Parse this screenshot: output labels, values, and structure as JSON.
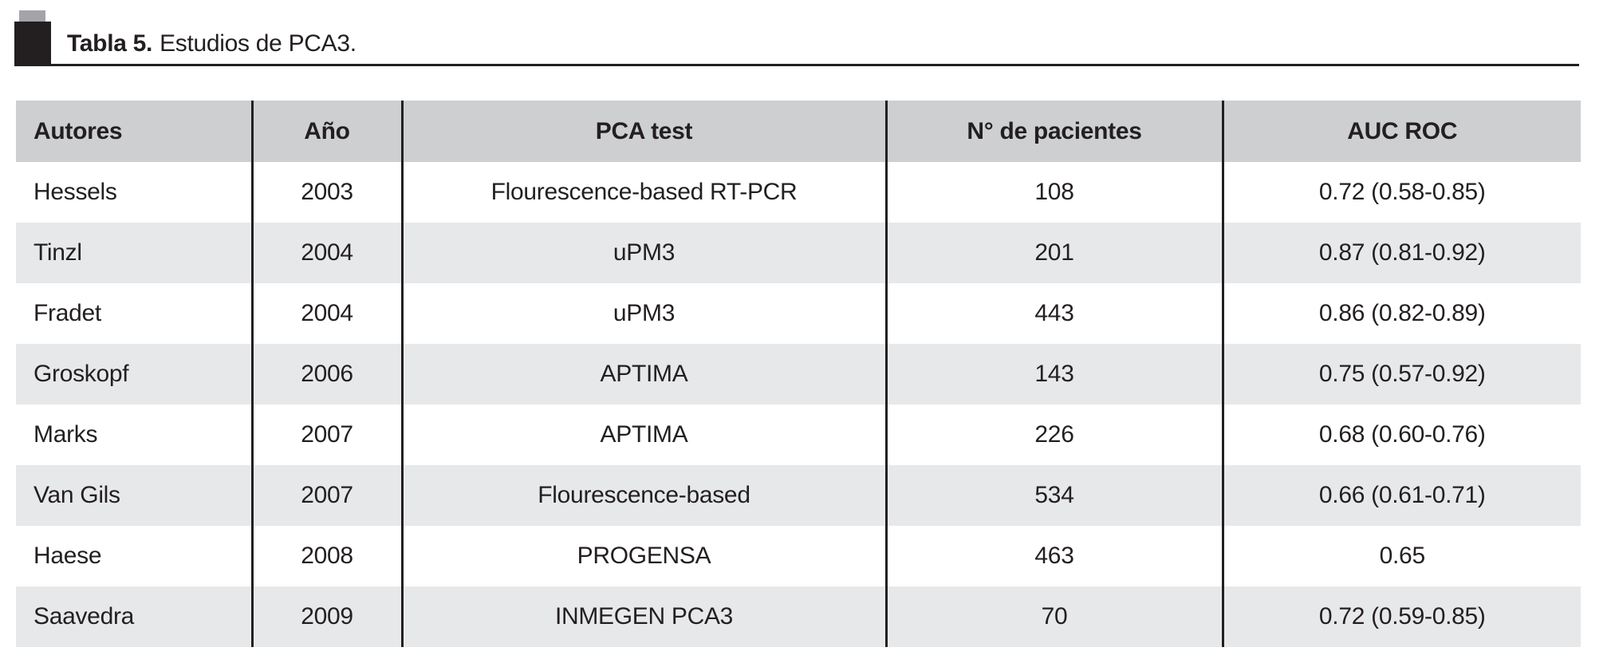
{
  "title": {
    "label": "Tabla 5.",
    "text": "Estudios de PCA3."
  },
  "colors": {
    "text": "#231f20",
    "header_bg": "#cdcfd0",
    "row_alt_bg": "#e7e8ea"
  },
  "table": {
    "headers": [
      "Autores",
      "Año",
      "PCA test",
      "N° de pacientes",
      "AUC ROC"
    ],
    "rows": [
      [
        "Hessels",
        "2003",
        "Flourescence-based RT-PCR",
        "108",
        "0.72 (0.58-0.85)"
      ],
      [
        "Tinzl",
        "2004",
        "uPM3",
        "201",
        "0.87 (0.81-0.92)"
      ],
      [
        "Fradet",
        "2004",
        "uPM3",
        "443",
        "0.86 (0.82-0.89)"
      ],
      [
        "Groskopf",
        "2006",
        "APTIMA",
        "143",
        "0.75 (0.57-0.92)"
      ],
      [
        "Marks",
        "2007",
        "APTIMA",
        "226",
        "0.68 (0.60-0.76)"
      ],
      [
        "Van Gils",
        "2007",
        "Flourescence-based",
        "534",
        "0.66 (0.61-0.71)"
      ],
      [
        "Haese",
        "2008",
        "PROGENSA",
        "463",
        "0.65"
      ],
      [
        "Saavedra",
        "2009",
        "INMEGEN PCA3",
        "70",
        "0.72 (0.59-0.85)"
      ]
    ]
  }
}
